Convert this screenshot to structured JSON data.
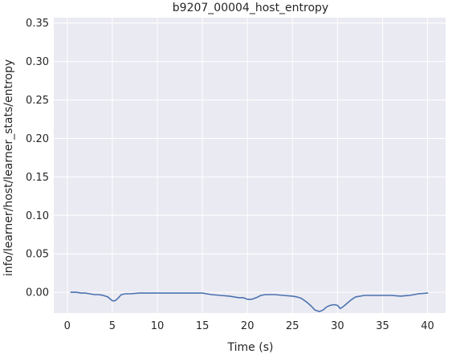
{
  "chart_data": {
    "type": "line",
    "title": "b9207_00004_host_entropy",
    "xlabel": "Time (s)",
    "ylabel": "info/learner/host/learner_stats/entropy",
    "xlim": [
      -1.5,
      42
    ],
    "ylim": [
      -0.027,
      0.357
    ],
    "xticks": [
      0,
      5,
      10,
      15,
      20,
      25,
      30,
      35,
      40
    ],
    "yticks": [
      0.0,
      0.05,
      0.1,
      0.15,
      0.2,
      0.25,
      0.3,
      0.35
    ],
    "xtick_labels": [
      "0",
      "5",
      "10",
      "15",
      "20",
      "25",
      "30",
      "35",
      "40"
    ],
    "ytick_labels": [
      "0.00",
      "0.05",
      "0.10",
      "0.15",
      "0.20",
      "0.25",
      "0.30",
      "0.35"
    ],
    "grid": true,
    "colors": {
      "line": "#4c72b0",
      "background": "#eaeaf2",
      "grid": "#ffffff"
    },
    "series": [
      {
        "x": [
          0.4,
          1.0,
          1.5,
          2.0,
          2.5,
          3.0,
          3.5,
          4.0,
          4.5,
          5.0,
          5.3,
          5.6,
          6.0,
          6.5,
          7.0,
          8.0,
          9.0,
          10.0,
          11.0,
          12.0,
          13.0,
          14.0,
          15.0,
          16.0,
          17.0,
          18.0,
          19.0,
          19.5,
          20.0,
          20.5,
          21.0,
          21.5,
          22.0,
          23.0,
          24.0,
          25.0,
          25.5,
          26.0,
          26.5,
          27.0,
          27.5,
          28.0,
          28.4,
          28.8,
          29.2,
          29.6,
          30.0,
          30.3,
          30.6,
          31.0,
          31.5,
          32.0,
          33.0,
          34.0,
          35.0,
          36.0,
          37.0,
          38.0,
          39.0,
          40.0
        ],
        "y": [
          0.0,
          0.0,
          -0.001,
          -0.001,
          -0.002,
          -0.003,
          -0.003,
          -0.004,
          -0.006,
          -0.011,
          -0.011,
          -0.008,
          -0.003,
          -0.002,
          -0.002,
          -0.001,
          -0.001,
          -0.001,
          -0.001,
          -0.001,
          -0.001,
          -0.001,
          -0.001,
          -0.003,
          -0.004,
          -0.005,
          -0.007,
          -0.007,
          -0.009,
          -0.009,
          -0.007,
          -0.004,
          -0.003,
          -0.003,
          -0.004,
          -0.005,
          -0.006,
          -0.008,
          -0.012,
          -0.017,
          -0.023,
          -0.025,
          -0.023,
          -0.019,
          -0.017,
          -0.016,
          -0.017,
          -0.021,
          -0.019,
          -0.015,
          -0.01,
          -0.006,
          -0.004,
          -0.004,
          -0.004,
          -0.004,
          -0.005,
          -0.004,
          -0.002,
          -0.001
        ]
      }
    ]
  }
}
